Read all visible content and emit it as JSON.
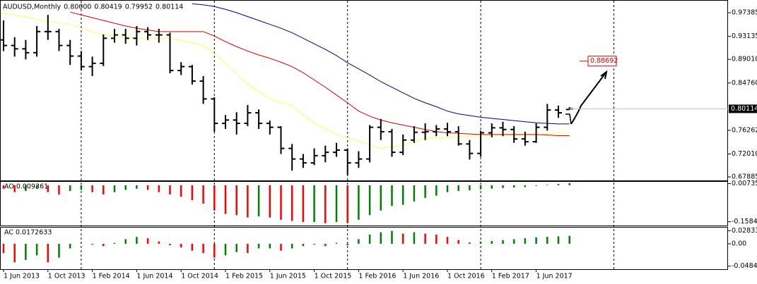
{
  "chart_data": [
    {
      "type": "ohlc",
      "title": "AUDUSD,Monthly",
      "header_values": [
        "0.80000",
        "0.80419",
        "0.79952",
        "0.80114"
      ],
      "categories": [
        "1 Jun 2013",
        null,
        null,
        null,
        "1 Oct 2013",
        null,
        null,
        null,
        "1 Feb 2014",
        null,
        null,
        null,
        "1 Jun 2014",
        null,
        null,
        null,
        "1 Oct 2014",
        null,
        null,
        null,
        "1 Feb 2015",
        null,
        null,
        null,
        "1 Jun 2015",
        null,
        null,
        null,
        "1 Oct 2015",
        null,
        null,
        null,
        "1 Feb 2016",
        null,
        null,
        null,
        "1 Jun 2016",
        null,
        null,
        null,
        "1 Oct 2016",
        null,
        null,
        null,
        "1 Feb 2017",
        null,
        null,
        null,
        "1 Jun 2017",
        null,
        null,
        null
      ],
      "open": [
        0.925,
        0.915,
        0.909,
        0.902,
        0.94,
        0.94,
        0.915,
        0.896,
        0.877,
        0.883,
        0.928,
        0.934,
        0.928,
        0.94,
        0.934,
        0.934,
        0.87,
        0.877,
        0.851,
        0.819,
        0.775,
        0.781,
        0.775,
        0.794,
        0.775,
        0.768,
        0.73,
        0.711,
        0.704,
        0.717,
        0.723,
        0.727,
        0.704,
        0.711,
        0.768,
        0.76,
        0.723,
        0.745,
        0.759,
        0.76,
        0.765,
        0.76,
        0.738,
        0.721,
        0.758,
        0.767,
        0.764,
        0.747,
        0.742,
        0.768,
        0.799,
        0.8
      ],
      "high": [
        0.96,
        0.93,
        0.925,
        0.95,
        0.97,
        0.945,
        0.925,
        0.905,
        0.895,
        0.935,
        0.945,
        0.945,
        0.95,
        0.948,
        0.945,
        0.938,
        0.885,
        0.88,
        0.86,
        0.822,
        0.79,
        0.795,
        0.808,
        0.8,
        0.78,
        0.77,
        0.738,
        0.72,
        0.73,
        0.735,
        0.74,
        0.73,
        0.725,
        0.772,
        0.783,
        0.765,
        0.755,
        0.77,
        0.775,
        0.772,
        0.776,
        0.77,
        0.745,
        0.762,
        0.775,
        0.778,
        0.77,
        0.76,
        0.775,
        0.81,
        0.807,
        0.80419
      ],
      "low": [
        0.905,
        0.895,
        0.89,
        0.895,
        0.925,
        0.905,
        0.88,
        0.87,
        0.86,
        0.878,
        0.92,
        0.918,
        0.915,
        0.925,
        0.92,
        0.865,
        0.862,
        0.845,
        0.81,
        0.76,
        0.765,
        0.755,
        0.77,
        0.765,
        0.755,
        0.72,
        0.69,
        0.695,
        0.7,
        0.705,
        0.715,
        0.682,
        0.695,
        0.705,
        0.745,
        0.715,
        0.718,
        0.74,
        0.745,
        0.752,
        0.752,
        0.735,
        0.71,
        0.715,
        0.75,
        0.752,
        0.74,
        0.735,
        0.74,
        0.762,
        0.785,
        0.79952
      ],
      "close": [
        0.915,
        0.909,
        0.902,
        0.94,
        0.94,
        0.915,
        0.896,
        0.877,
        0.883,
        0.928,
        0.934,
        0.928,
        0.94,
        0.934,
        0.934,
        0.87,
        0.877,
        0.851,
        0.819,
        0.775,
        0.781,
        0.775,
        0.794,
        0.775,
        0.768,
        0.73,
        0.711,
        0.704,
        0.717,
        0.723,
        0.727,
        0.704,
        0.711,
        0.768,
        0.76,
        0.723,
        0.745,
        0.759,
        0.76,
        0.765,
        0.76,
        0.738,
        0.721,
        0.758,
        0.767,
        0.764,
        0.747,
        0.742,
        0.768,
        0.799,
        0.794,
        0.80114
      ],
      "color": "#000000",
      "lines": [
        {
          "color": "#ffff55",
          "values": [
            0.973,
            0.97,
            0.966,
            0.962,
            0.958,
            0.956,
            0.953,
            0.946,
            0.94,
            0.934,
            0.932,
            0.93,
            0.928,
            0.928,
            0.928,
            0.928,
            0.924,
            0.92,
            0.915,
            0.9,
            0.883,
            0.864,
            0.845,
            0.832,
            0.819,
            0.813,
            0.807,
            0.791,
            0.775,
            0.765,
            0.755,
            0.749,
            0.743,
            0.737,
            0.73,
            0.733,
            0.736,
            0.742,
            0.749,
            0.749,
            0.749,
            0.751,
            0.752,
            0.753,
            0.754,
            0.754,
            0.754,
            0.754,
            0.754,
            0.756,
            0.758,
            0.759
          ]
        },
        {
          "color": "#dd0000",
          "values": [
            null,
            null,
            null,
            null,
            null,
            null,
            0.975,
            0.97,
            0.965,
            0.96,
            0.955,
            0.95,
            0.946,
            0.943,
            0.94,
            0.94,
            0.94,
            0.94,
            0.94,
            0.932,
            0.922,
            0.913,
            0.905,
            0.898,
            0.892,
            0.885,
            0.877,
            0.866,
            0.853,
            0.84,
            0.826,
            0.812,
            0.797,
            0.788,
            0.781,
            0.776,
            0.772,
            0.768,
            0.764,
            0.76,
            0.758,
            0.757,
            0.756,
            0.755,
            0.755,
            0.755,
            0.755,
            0.755,
            0.755,
            0.754,
            0.753,
            0.753
          ]
        },
        {
          "color": "#000088",
          "values": [
            null,
            null,
            null,
            null,
            null,
            null,
            null,
            null,
            null,
            null,
            null,
            null,
            null,
            null,
            null,
            null,
            null,
            0.99,
            0.988,
            0.985,
            0.98,
            0.974,
            0.967,
            0.96,
            0.953,
            0.946,
            0.938,
            0.928,
            0.918,
            0.908,
            0.897,
            0.884,
            0.873,
            0.862,
            0.85,
            0.84,
            0.83,
            0.82,
            0.812,
            0.805,
            0.797,
            0.792,
            0.789,
            0.786,
            0.784,
            0.782,
            0.78,
            0.778,
            0.776,
            0.775,
            0.774,
            0.774
          ]
        }
      ],
      "target": 0.88692,
      "target_color": "#dd0000",
      "ylim": [
        0.6725,
        0.9955
      ],
      "yticks": [
        0.97385,
        0.93135,
        {
          "value": 0.8901,
          "label": "0.89010"
        },
        {
          "value": 0.8476,
          "label": "0.84760"
        },
        0.76262,
        {
          "value": 0.7201,
          "label": "0.72010"
        },
        0.67885
      ]
    },
    {
      "type": "bar",
      "title": "AO 0.009361",
      "values": [
        -0.015,
        -0.03,
        -0.025,
        -0.015,
        -0.03,
        -0.04,
        -0.025,
        -0.02,
        -0.03,
        -0.04,
        -0.03,
        -0.02,
        -0.015,
        -0.02,
        -0.03,
        -0.04,
        -0.05,
        -0.065,
        -0.08,
        -0.11,
        -0.125,
        -0.13,
        -0.14,
        -0.135,
        -0.14,
        -0.15,
        -0.155,
        -0.16,
        -0.16,
        -0.165,
        -0.16,
        -0.165,
        -0.15,
        -0.13,
        -0.11,
        -0.09,
        -0.085,
        -0.07,
        -0.055,
        -0.045,
        -0.03,
        -0.025,
        -0.022,
        -0.018,
        -0.015,
        -0.012,
        -0.01,
        -0.008,
        -0.003,
        0.002,
        0.006,
        0.009361
      ],
      "up_color": "#008000",
      "down_color": "#ff0000",
      "ylim": [
        -0.175,
        0.015
      ],
      "yticks": [
        0.00735,
        -0.15842
      ]
    },
    {
      "type": "bar",
      "title": "AC 0.0172633",
      "values": [
        -0.02,
        -0.04,
        -0.035,
        -0.025,
        -0.04,
        -0.03,
        -0.01,
        0.001,
        -0.002,
        -0.005,
        0.002,
        0.01,
        0.015,
        0.012,
        0.005,
        -0.003,
        -0.008,
        -0.015,
        -0.02,
        -0.03,
        -0.025,
        -0.018,
        -0.02,
        -0.01,
        -0.01,
        -0.015,
        -0.01,
        -0.005,
        -0.002,
        -0.005,
        0.002,
        -0.003,
        0.01,
        0.02,
        0.025,
        0.028,
        0.022,
        0.025,
        0.022,
        0.02,
        0.015,
        0.008,
        0.003,
        0.005,
        0.006,
        0.008,
        0.01,
        0.012,
        0.014,
        0.015,
        0.016,
        0.0172633
      ],
      "up_color": "#008000",
      "down_color": "#ff0000",
      "ylim": [
        -0.055,
        0.035
      ],
      "yticks": [
        0.028336,
        {
          "value": 0,
          "label": "0.00"
        },
        -0.048418
      ]
    }
  ]
}
